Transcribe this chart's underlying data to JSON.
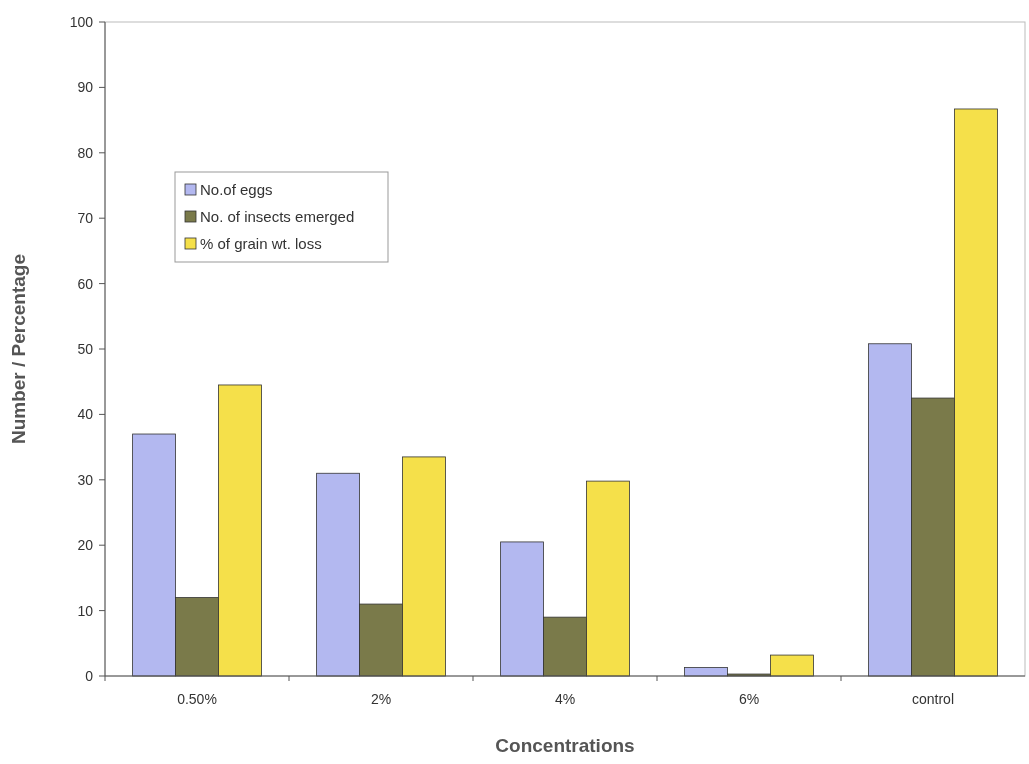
{
  "chart_data": {
    "type": "bar",
    "xlabel": "Concentrations",
    "ylabel": "Number / Percentage",
    "categories": [
      "0.50%",
      "2%",
      "4%",
      "6%",
      "control"
    ],
    "series": [
      {
        "name": "No.of eggs",
        "color": "#b3b8f0",
        "values": [
          37,
          31,
          20.5,
          1.3,
          50.8
        ]
      },
      {
        "name": "No. of insects emerged",
        "color": "#7a7a4a",
        "values": [
          12,
          11,
          9,
          0.3,
          42.5
        ]
      },
      {
        "name": "% of grain wt. loss",
        "color": "#f5e04a",
        "values": [
          44.5,
          33.5,
          29.8,
          3.2,
          86.7
        ]
      }
    ],
    "ylim": [
      0,
      100
    ],
    "yticks": [
      0,
      10,
      20,
      30,
      40,
      50,
      60,
      70,
      80,
      90,
      100
    ],
    "legend": "top left"
  }
}
